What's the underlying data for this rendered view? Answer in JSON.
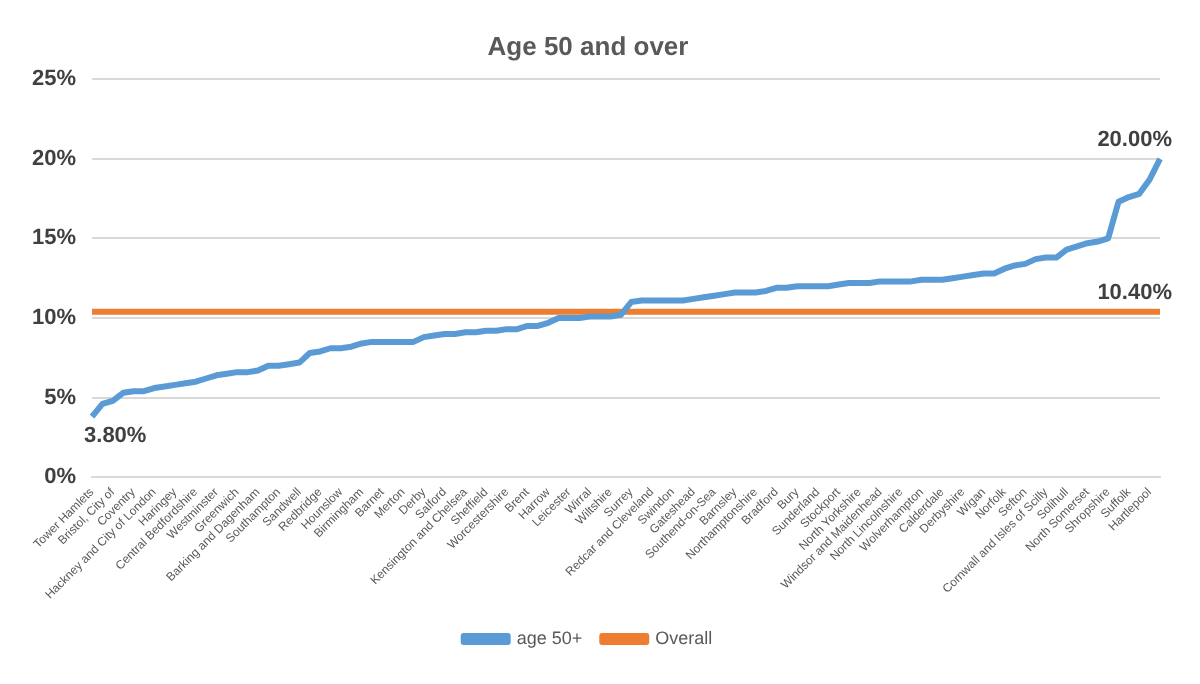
{
  "chart_data": {
    "type": "line",
    "title": "Age 50 and over",
    "categories": [
      "Tower Hamlets",
      null,
      "Bristol, City of",
      null,
      "Coventry",
      null,
      "Hackney and City of London",
      null,
      "Haringey",
      null,
      "Central Bedfordshire",
      null,
      "Westminster",
      null,
      "Greenwich",
      null,
      "Barking and Dagenham",
      null,
      "Southampton",
      null,
      "Sandwell",
      null,
      "Redbridge",
      null,
      "Hounslow",
      null,
      "Birmingham",
      null,
      "Barnet",
      null,
      "Merton",
      null,
      "Derby",
      null,
      "Salford",
      null,
      "Kensington and Chelsea",
      null,
      "Sheffield",
      null,
      "Worcestershire",
      null,
      "Brent",
      null,
      "Harrow",
      null,
      "Leicester",
      null,
      "Wirral",
      null,
      "Wiltshire",
      null,
      "Surrey",
      null,
      "Redcar and Cleveland",
      null,
      "Swindon",
      null,
      "Gateshead",
      null,
      "Southend-on-Sea",
      null,
      "Barnsley",
      null,
      "Northamptonshire",
      null,
      "Bradford",
      null,
      "Bury",
      null,
      "Sunderland",
      null,
      "Stockport",
      null,
      "North Yorkshire",
      null,
      "Windsor and Maidenhead",
      null,
      "North Lincolnshire",
      null,
      "Wolverhampton",
      null,
      "Calderdale",
      null,
      "Derbyshire",
      null,
      "Wigan",
      null,
      "Norfolk",
      null,
      "Sefton",
      null,
      "Cornwall and Isles of Scilly",
      null,
      "Solihull",
      null,
      "North Somerset",
      null,
      "Shropshire",
      null,
      "Suffolk",
      null,
      "Hartlepool",
      null
    ],
    "series": [
      {
        "name": "age 50+",
        "color": "#5b9bd5",
        "values": [
          3.8,
          4.6,
          4.8,
          5.3,
          5.4,
          5.4,
          5.6,
          5.7,
          5.8,
          5.9,
          6.0,
          6.2,
          6.4,
          6.5,
          6.6,
          6.6,
          6.7,
          7.0,
          7.0,
          7.1,
          7.2,
          7.8,
          7.9,
          8.1,
          8.1,
          8.2,
          8.4,
          8.5,
          8.5,
          8.5,
          8.5,
          8.5,
          8.8,
          8.9,
          9.0,
          9.0,
          9.1,
          9.1,
          9.2,
          9.2,
          9.3,
          9.3,
          9.5,
          9.5,
          9.7,
          10.0,
          10.0,
          10.0,
          10.1,
          10.1,
          10.1,
          10.2,
          11.0,
          11.1,
          11.1,
          11.1,
          11.1,
          11.1,
          11.2,
          11.3,
          11.4,
          11.5,
          11.6,
          11.6,
          11.6,
          11.7,
          11.9,
          11.9,
          12.0,
          12.0,
          12.0,
          12.0,
          12.1,
          12.2,
          12.2,
          12.2,
          12.3,
          12.3,
          12.3,
          12.3,
          12.4,
          12.4,
          12.4,
          12.5,
          12.6,
          12.7,
          12.8,
          12.8,
          13.1,
          13.3,
          13.4,
          13.7,
          13.8,
          13.8,
          14.3,
          14.5,
          14.7,
          14.8,
          15.0,
          17.3,
          17.6,
          17.8,
          18.7,
          20.0
        ],
        "value_labels": [
          "3.80%",
          null,
          null,
          null,
          null,
          null,
          null,
          null,
          null,
          null,
          null,
          null,
          null,
          null,
          null,
          null,
          null,
          null,
          null,
          null,
          null,
          null,
          null,
          null,
          null,
          null,
          null,
          null,
          null,
          null,
          null,
          null,
          null,
          null,
          null,
          null,
          null,
          null,
          null,
          null,
          null,
          null,
          null,
          null,
          null,
          null,
          null,
          null,
          null,
          null,
          null,
          null,
          null,
          null,
          null,
          null,
          null,
          null,
          null,
          null,
          null,
          null,
          null,
          null,
          null,
          null,
          null,
          null,
          null,
          null,
          null,
          null,
          null,
          null,
          null,
          null,
          null,
          null,
          null,
          null,
          null,
          null,
          null,
          null,
          null,
          null,
          null,
          null,
          null,
          null,
          null,
          null,
          null,
          null,
          null,
          null,
          null,
          null,
          null,
          null,
          null,
          null,
          null,
          "20.00%"
        ]
      },
      {
        "name": "Overall",
        "color": "#ed7d31",
        "values": [
          10.4,
          10.4,
          10.4,
          10.4,
          10.4,
          10.4,
          10.4,
          10.4,
          10.4,
          10.4,
          10.4,
          10.4,
          10.4,
          10.4,
          10.4,
          10.4,
          10.4,
          10.4,
          10.4,
          10.4,
          10.4,
          10.4,
          10.4,
          10.4,
          10.4,
          10.4,
          10.4,
          10.4,
          10.4,
          10.4,
          10.4,
          10.4,
          10.4,
          10.4,
          10.4,
          10.4,
          10.4,
          10.4,
          10.4,
          10.4,
          10.4,
          10.4,
          10.4,
          10.4,
          10.4,
          10.4,
          10.4,
          10.4,
          10.4,
          10.4,
          10.4,
          10.4,
          10.4,
          10.4,
          10.4,
          10.4,
          10.4,
          10.4,
          10.4,
          10.4,
          10.4,
          10.4,
          10.4,
          10.4,
          10.4,
          10.4,
          10.4,
          10.4,
          10.4,
          10.4,
          10.4,
          10.4,
          10.4,
          10.4,
          10.4,
          10.4,
          10.4,
          10.4,
          10.4,
          10.4,
          10.4,
          10.4,
          10.4,
          10.4,
          10.4,
          10.4,
          10.4,
          10.4,
          10.4,
          10.4,
          10.4,
          10.4,
          10.4,
          10.4,
          10.4,
          10.4,
          10.4,
          10.4,
          10.4,
          10.4,
          10.4,
          10.4,
          10.4,
          10.4
        ],
        "value_labels": [
          null,
          null,
          null,
          null,
          null,
          null,
          null,
          null,
          null,
          null,
          null,
          null,
          null,
          null,
          null,
          null,
          null,
          null,
          null,
          null,
          null,
          null,
          null,
          null,
          null,
          null,
          null,
          null,
          null,
          null,
          null,
          null,
          null,
          null,
          null,
          null,
          null,
          null,
          null,
          null,
          null,
          null,
          null,
          null,
          null,
          null,
          null,
          null,
          null,
          null,
          null,
          null,
          null,
          null,
          null,
          null,
          null,
          null,
          null,
          null,
          null,
          null,
          null,
          null,
          null,
          null,
          null,
          null,
          null,
          null,
          null,
          null,
          null,
          null,
          null,
          null,
          null,
          null,
          null,
          null,
          null,
          null,
          null,
          null,
          null,
          null,
          null,
          null,
          null,
          null,
          null,
          null,
          null,
          null,
          null,
          null,
          null,
          null,
          null,
          null,
          null,
          null,
          null,
          "10.40%"
        ]
      }
    ],
    "ylim": [
      0,
      25
    ],
    "yticks": [
      {
        "value": 0,
        "label": "0%"
      },
      {
        "value": 5,
        "label": "5%"
      },
      {
        "value": 10,
        "label": "10%"
      },
      {
        "value": 15,
        "label": "15%"
      },
      {
        "value": 20,
        "label": "20%"
      },
      {
        "value": 25,
        "label": "25%"
      }
    ],
    "grid": "y",
    "legend": "bottom",
    "marker": "none",
    "line_style": "solid"
  }
}
